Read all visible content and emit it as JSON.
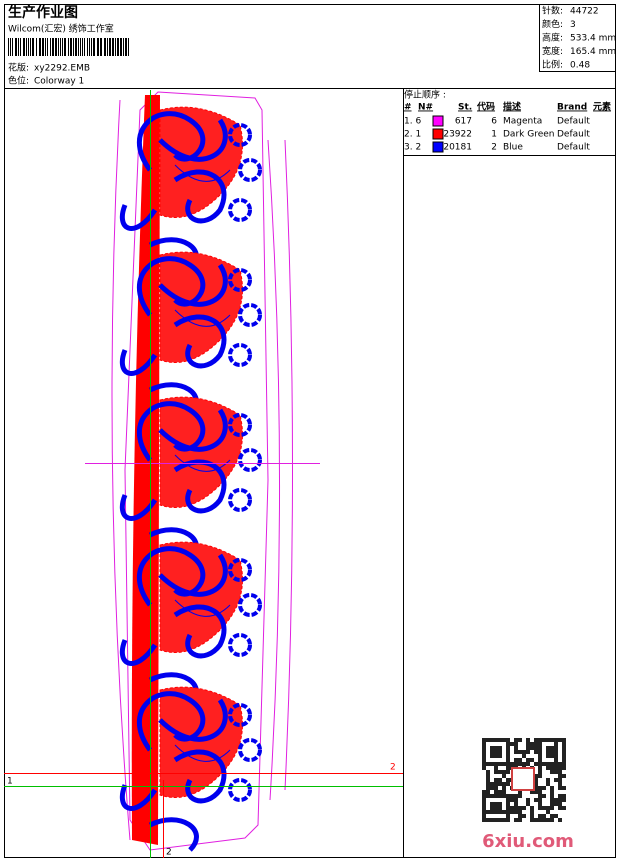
{
  "header": {
    "title": "生产作业图",
    "subtitle": "Wilcom(汇宏) 绣饰工作室",
    "design_label": "花版:",
    "design": "xy2292.EMB",
    "colorway_label": "色位:",
    "colorway": "Colorway 1"
  },
  "stats": [
    {
      "label": "针数:",
      "value": "44722"
    },
    {
      "label": "颜色:",
      "value": "3"
    },
    {
      "label": "高度:",
      "value": "533.4 mm"
    },
    {
      "label": "宽度:",
      "value": "165.4 mm"
    },
    {
      "label": "比例:",
      "value": "0.48"
    }
  ],
  "stop_sequence": {
    "title": "停止顺序 :",
    "columns": [
      "#",
      "N#",
      "St.",
      "代码",
      "描述",
      "Brand",
      "元素"
    ],
    "rows": [
      {
        "index": "1. 6",
        "color": "#ff00ff",
        "stitches": "617",
        "code": "6",
        "description": "Magenta",
        "brand": "Default"
      },
      {
        "index": "2. 1",
        "color": "#ff0000",
        "stitches": "23922",
        "code": "1",
        "description": "Dark Green",
        "brand": "Default"
      },
      {
        "index": "3. 2",
        "color": "#0000ff",
        "stitches": "20181",
        "code": "2",
        "description": "Blue",
        "brand": "Default"
      }
    ]
  },
  "markers": {
    "left": "1",
    "right": "2",
    "bottom": "2"
  },
  "watermark": "6xiu.com"
}
